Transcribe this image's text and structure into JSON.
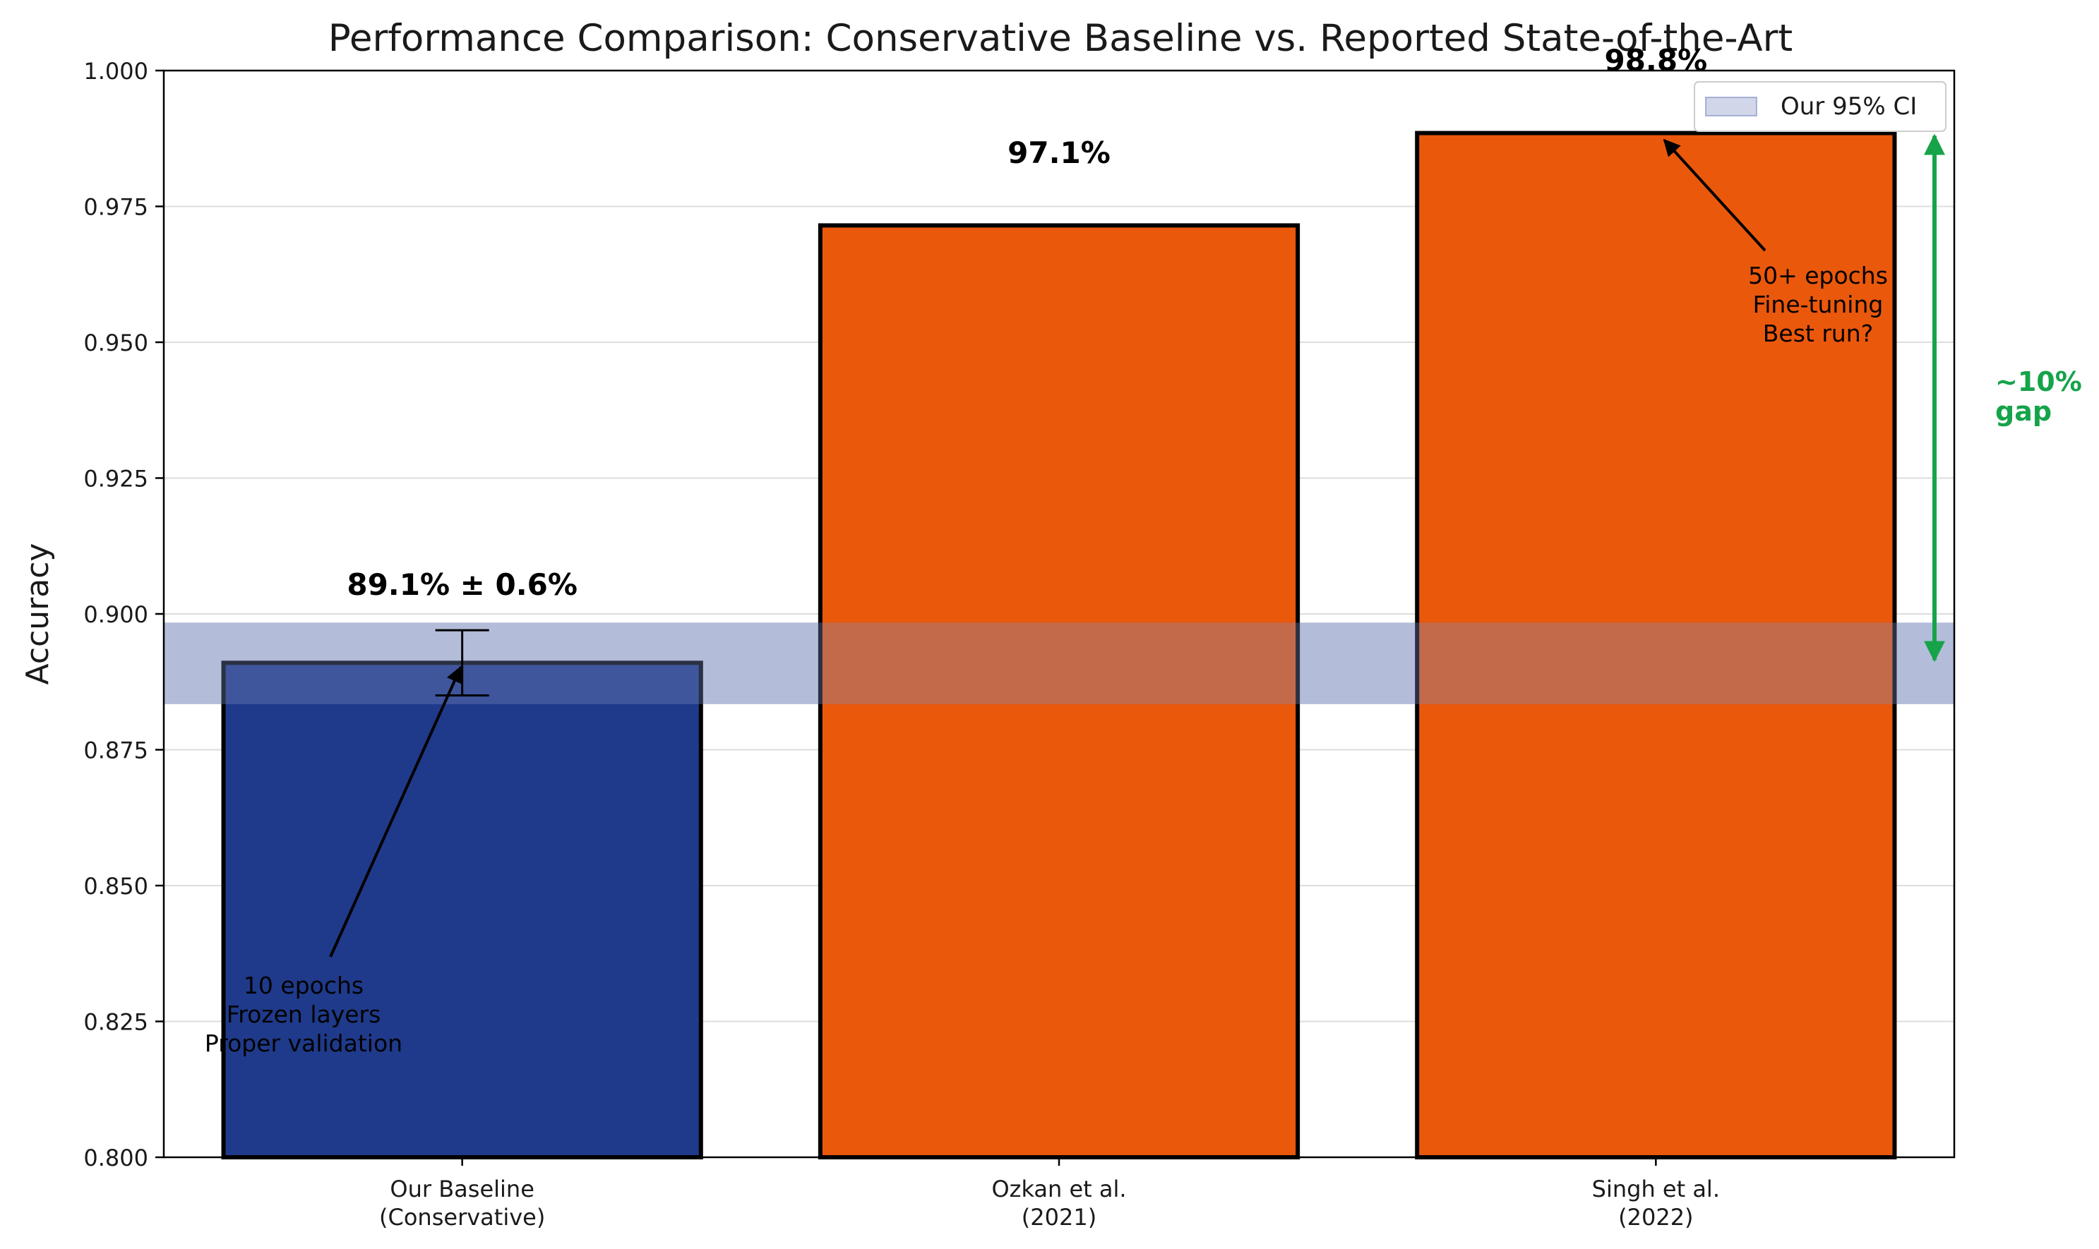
{
  "chart_data": {
    "type": "bar",
    "title": "Performance Comparison: Conservative Baseline vs. Reported State-of-the-Art",
    "xlabel": "",
    "ylabel": "Accuracy",
    "ylim": [
      0.8,
      1.0
    ],
    "yticks": [
      "0.800",
      "0.825",
      "0.850",
      "0.875",
      "0.900",
      "0.925",
      "0.950",
      "0.975",
      "1.000"
    ],
    "grid": "y",
    "categories": [
      [
        "Our Baseline",
        "(Conservative)"
      ],
      [
        "Ozkan et al.",
        "(2021)"
      ],
      [
        "Singh et al.",
        "(2022)"
      ]
    ],
    "values": [
      0.891,
      0.9715,
      0.9885
    ],
    "error": [
      0.006,
      null,
      null
    ],
    "bar_colors": [
      "#1f3a8a",
      "#ea580c",
      "#ea580c"
    ],
    "value_labels": [
      "89.1% ± 0.6%",
      "97.1%",
      "98.8%"
    ],
    "ci_band": {
      "low": 0.8834,
      "high": 0.8984,
      "label": "Our 95% CI",
      "color": "#7b8bbf"
    },
    "legend": {
      "position": "top-right",
      "entries": [
        "Our 95% CI"
      ]
    },
    "annotations": [
      {
        "lines": [
          "10 epochs",
          "Frozen layers",
          "Proper validation"
        ],
        "points_to": "Our Baseline"
      },
      {
        "lines": [
          "50+ epochs",
          "Fine-tuning",
          "Best run?"
        ],
        "points_to": "Singh et al."
      }
    ],
    "gap": {
      "lines": [
        "~10%",
        "gap"
      ],
      "from": 0.891,
      "to": 0.9885,
      "color": "#16a34a"
    }
  }
}
